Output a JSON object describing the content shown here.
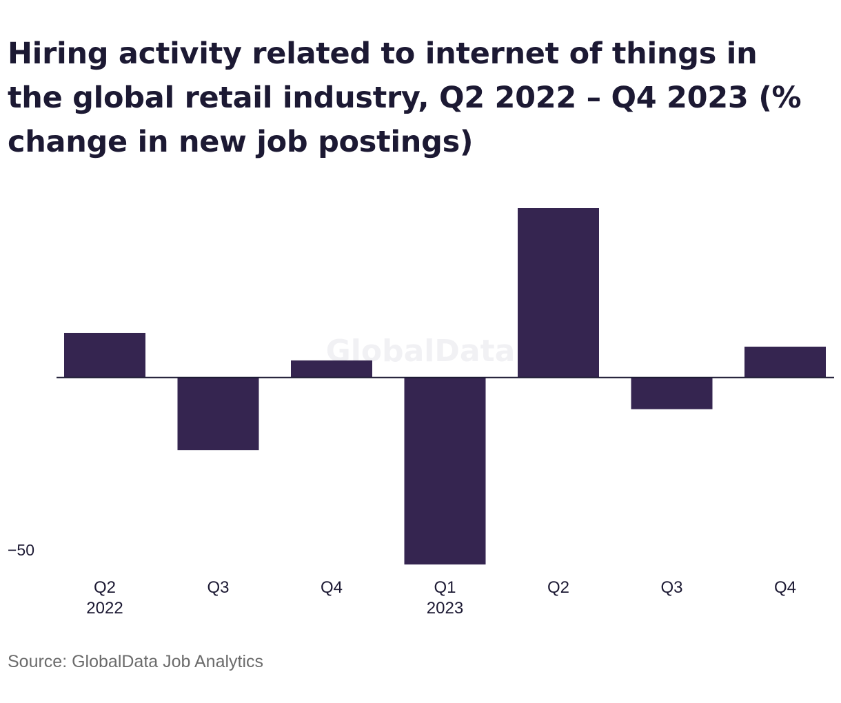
{
  "chart_data": {
    "type": "bar",
    "title": "Hiring activity related to internet of things in the global retail industry, Q2 2022 – Q4 2023 (% change in new job postings)",
    "categories": [
      "Q2",
      "Q3",
      "Q4",
      "Q1",
      "Q2",
      "Q3",
      "Q4"
    ],
    "category_years": [
      "2022",
      "",
      "",
      "2023",
      "",
      "",
      ""
    ],
    "values": [
      12,
      -19.5,
      4.6,
      -50.2,
      45.5,
      -8.5,
      8.3
    ],
    "ylim": [
      -50.2,
      45.5
    ],
    "yticks": [
      -50
    ],
    "ytick_labels": [
      "−50"
    ],
    "xlabel": "",
    "ylabel": "",
    "grid": false,
    "bar_color": "#352550"
  },
  "watermark": "GlobalData",
  "source": "Source: GlobalData Job Analytics"
}
